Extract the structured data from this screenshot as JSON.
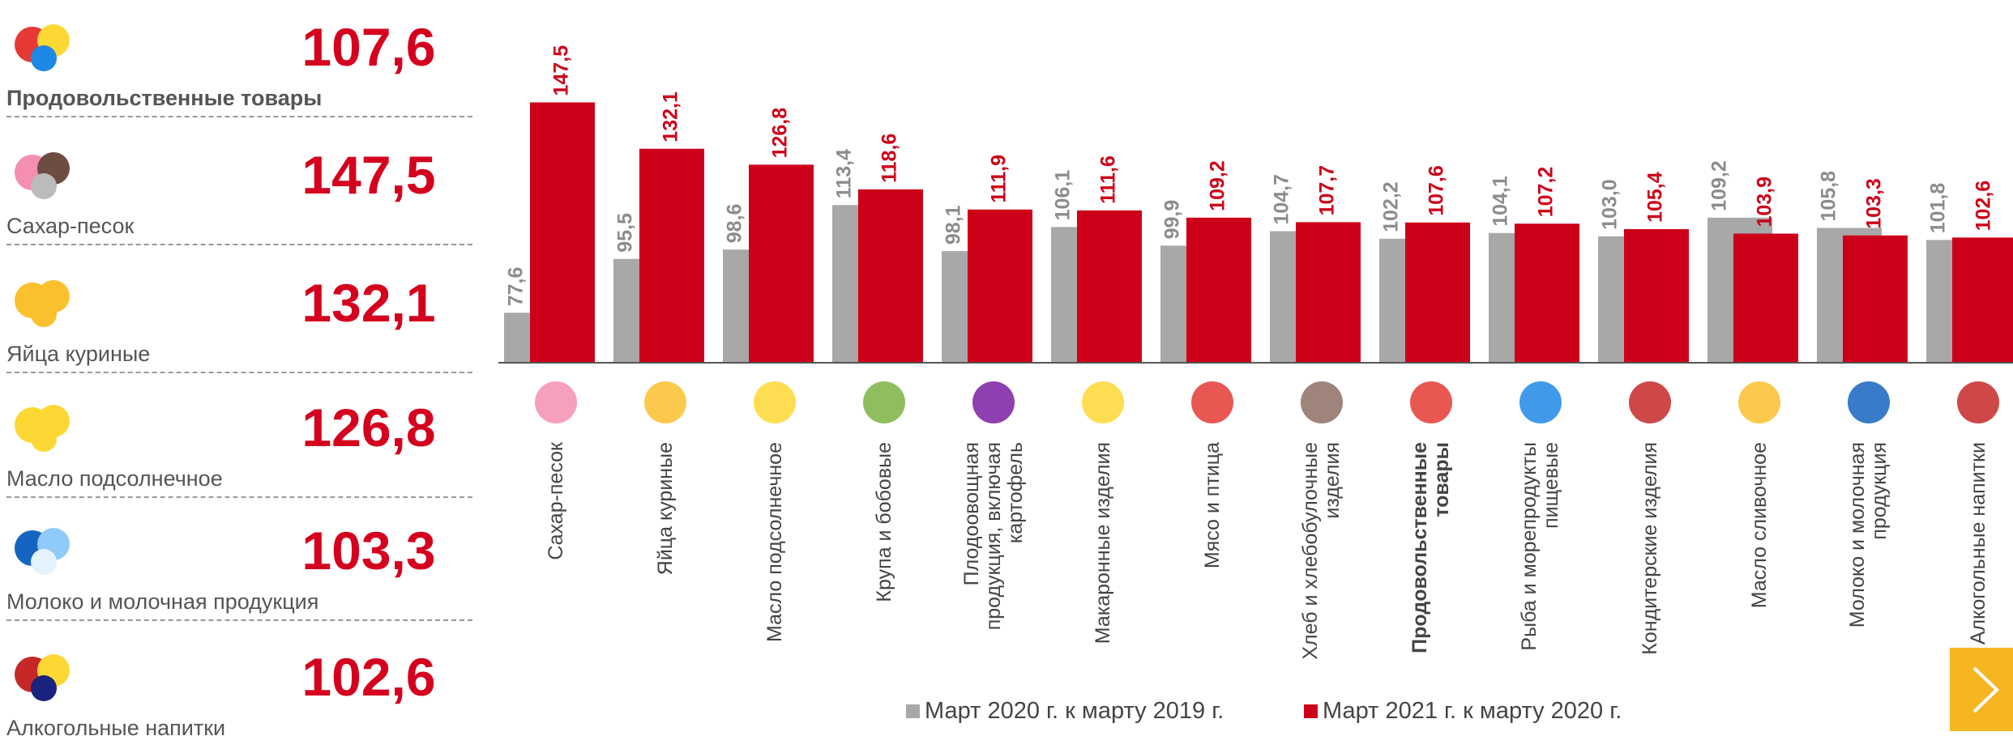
{
  "left_panel": {
    "items": [
      {
        "value": "107,6",
        "label": "Продовольственные товары"
      },
      {
        "value": "147,5",
        "label": "Сахар-песок"
      },
      {
        "value": "132,1",
        "label": "Яйца куриные"
      },
      {
        "value": "126,8",
        "label": "Масло подсолнечное"
      },
      {
        "value": "103,3",
        "label": "Молоко и молочная продукция"
      },
      {
        "value": "102,6",
        "label": "Алкогольные напитки"
      }
    ]
  },
  "chart_data": {
    "type": "bar",
    "categories": [
      "Сахар-песок",
      "Яйца куриные",
      "Масло подсолнечное",
      "Крупа и бобовые",
      "Плодоовощная продукция, включая картофель",
      "Макаронные изделия",
      "Мясо и птица",
      "Хлеб и хлебобулочные изделия",
      "Продовольственные товары",
      "Рыба и морепродукты пищевые",
      "Кондитерские изделия",
      "Масло сливочное",
      "Молоко и молочная продукция",
      "Алкогольные напитки"
    ],
    "series": [
      {
        "name": "Март 2020 г. к марту 2019 г.",
        "color": "#a8a8a8",
        "values": [
          77.6,
          95.5,
          98.6,
          113.4,
          98.1,
          106.1,
          99.9,
          104.7,
          102.2,
          104.1,
          103.0,
          109.2,
          105.8,
          101.8
        ],
        "value_labels": [
          "77,6",
          "95,5",
          "98,6",
          "113,4",
          "98,1",
          "106,1",
          "99,9",
          "104,7",
          "102,2",
          "104,1",
          "103,0",
          "109,2",
          "105,8",
          "101,8"
        ]
      },
      {
        "name": "Март 2021 г. к марту 2020 г.",
        "color": "#cc0018",
        "values": [
          147.5,
          132.1,
          126.8,
          118.6,
          111.9,
          111.6,
          109.2,
          107.7,
          107.6,
          107.2,
          105.4,
          103.9,
          103.3,
          102.6
        ],
        "value_labels": [
          "147,5",
          "132,1",
          "126,8",
          "118,6",
          "111,9",
          "111,6",
          "109,2",
          "107,7",
          "107,6",
          "107,2",
          "105,4",
          "103,9",
          "103,3",
          "102,6"
        ]
      }
    ],
    "bold_category": "Продовольственные товары",
    "ylim": [
      61,
      160
    ],
    "legend": "bottom"
  }
}
